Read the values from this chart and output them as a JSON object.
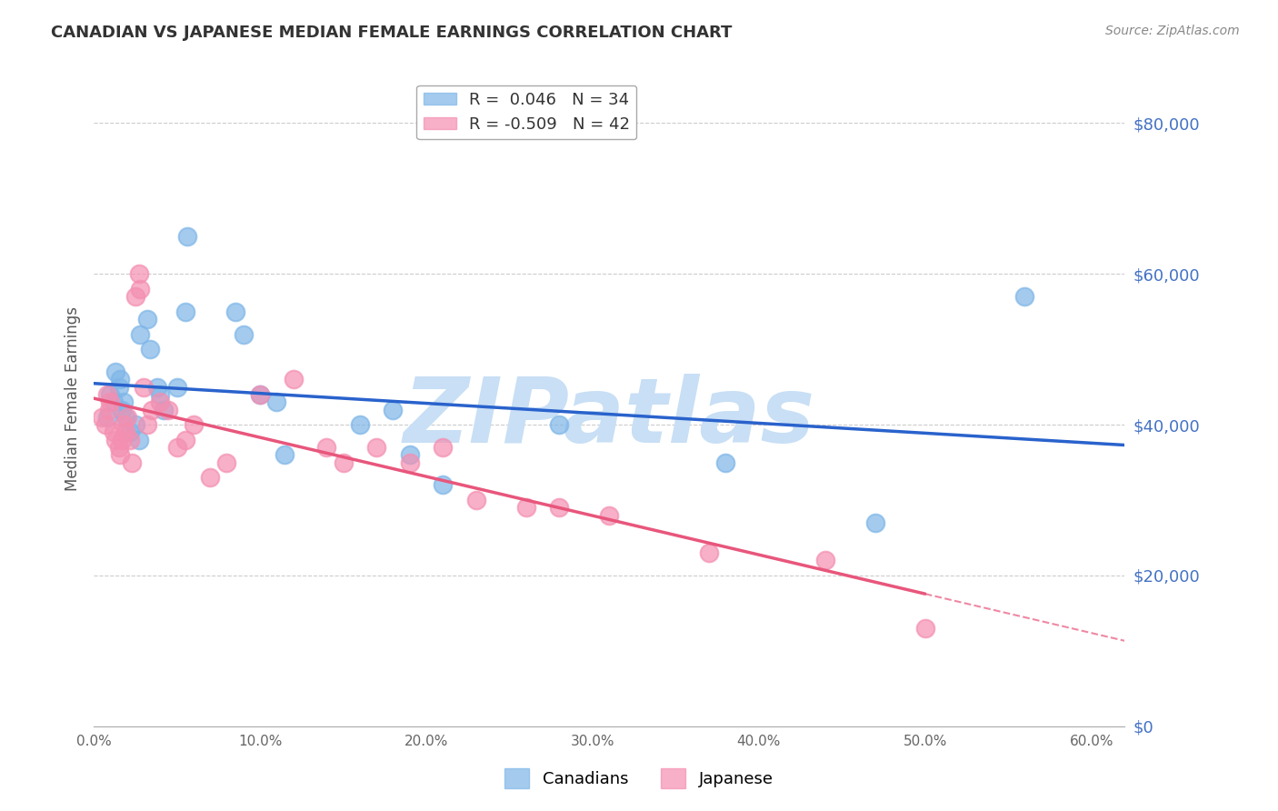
{
  "title": "CANADIAN VS JAPANESE MEDIAN FEMALE EARNINGS CORRELATION CHART",
  "source": "Source: ZipAtlas.com",
  "xlabel": "",
  "ylabel": "Median Female Earnings",
  "y_tick_labels": [
    "$0",
    "$20,000",
    "$40,000",
    "$60,000",
    "$80,000"
  ],
  "y_tick_values": [
    0,
    20000,
    40000,
    60000,
    80000
  ],
  "x_tick_labels": [
    "0.0%",
    "10.0%",
    "20.0%",
    "30.0%",
    "40.0%",
    "50.0%",
    "60.0%"
  ],
  "x_tick_values": [
    0,
    0.1,
    0.2,
    0.3,
    0.4,
    0.5,
    0.6
  ],
  "xlim": [
    0,
    0.62
  ],
  "ylim": [
    0,
    87000
  ],
  "canadians_R": 0.046,
  "canadians_N": 34,
  "japanese_R": -0.509,
  "japanese_N": 42,
  "canadians_color": "#7eb6e8",
  "japanese_color": "#f48fb1",
  "trendline_canadian_color": "#2962cc",
  "trendline_japanese_color": "#e8567c",
  "background_color": "#ffffff",
  "grid_color": "#cccccc",
  "watermark_text": "ZIPatlas",
  "watermark_color": "#c8dff5",
  "axis_label_color": "#555555",
  "y_tick_color": "#4472c4",
  "title_color": "#333333",
  "canadians_x": [
    0.008,
    0.01,
    0.012,
    0.013,
    0.015,
    0.016,
    0.017,
    0.018,
    0.019,
    0.022,
    0.025,
    0.027,
    0.028,
    0.032,
    0.034,
    0.038,
    0.04,
    0.042,
    0.05,
    0.055,
    0.056,
    0.085,
    0.09,
    0.1,
    0.11,
    0.115,
    0.16,
    0.18,
    0.19,
    0.21,
    0.28,
    0.38,
    0.47,
    0.56
  ],
  "canadians_y": [
    41000,
    44000,
    43000,
    47000,
    45000,
    46000,
    42000,
    43000,
    41000,
    39000,
    40000,
    38000,
    52000,
    54000,
    50000,
    45000,
    44000,
    42000,
    45000,
    55000,
    65000,
    55000,
    52000,
    44000,
    43000,
    36000,
    40000,
    42000,
    36000,
    32000,
    40000,
    35000,
    27000,
    57000
  ],
  "japanese_x": [
    0.005,
    0.007,
    0.008,
    0.009,
    0.01,
    0.012,
    0.013,
    0.015,
    0.016,
    0.017,
    0.018,
    0.019,
    0.02,
    0.022,
    0.023,
    0.025,
    0.027,
    0.028,
    0.03,
    0.032,
    0.035,
    0.04,
    0.045,
    0.05,
    0.055,
    0.06,
    0.07,
    0.08,
    0.1,
    0.12,
    0.14,
    0.15,
    0.17,
    0.19,
    0.21,
    0.23,
    0.26,
    0.28,
    0.31,
    0.37,
    0.44,
    0.5
  ],
  "japanese_y": [
    41000,
    40000,
    44000,
    42000,
    43000,
    39000,
    38000,
    37000,
    36000,
    38000,
    40000,
    39000,
    41000,
    38000,
    35000,
    57000,
    60000,
    58000,
    45000,
    40000,
    42000,
    43000,
    42000,
    37000,
    38000,
    40000,
    33000,
    35000,
    44000,
    46000,
    37000,
    35000,
    37000,
    35000,
    37000,
    30000,
    29000,
    29000,
    28000,
    23000,
    22000,
    13000
  ]
}
